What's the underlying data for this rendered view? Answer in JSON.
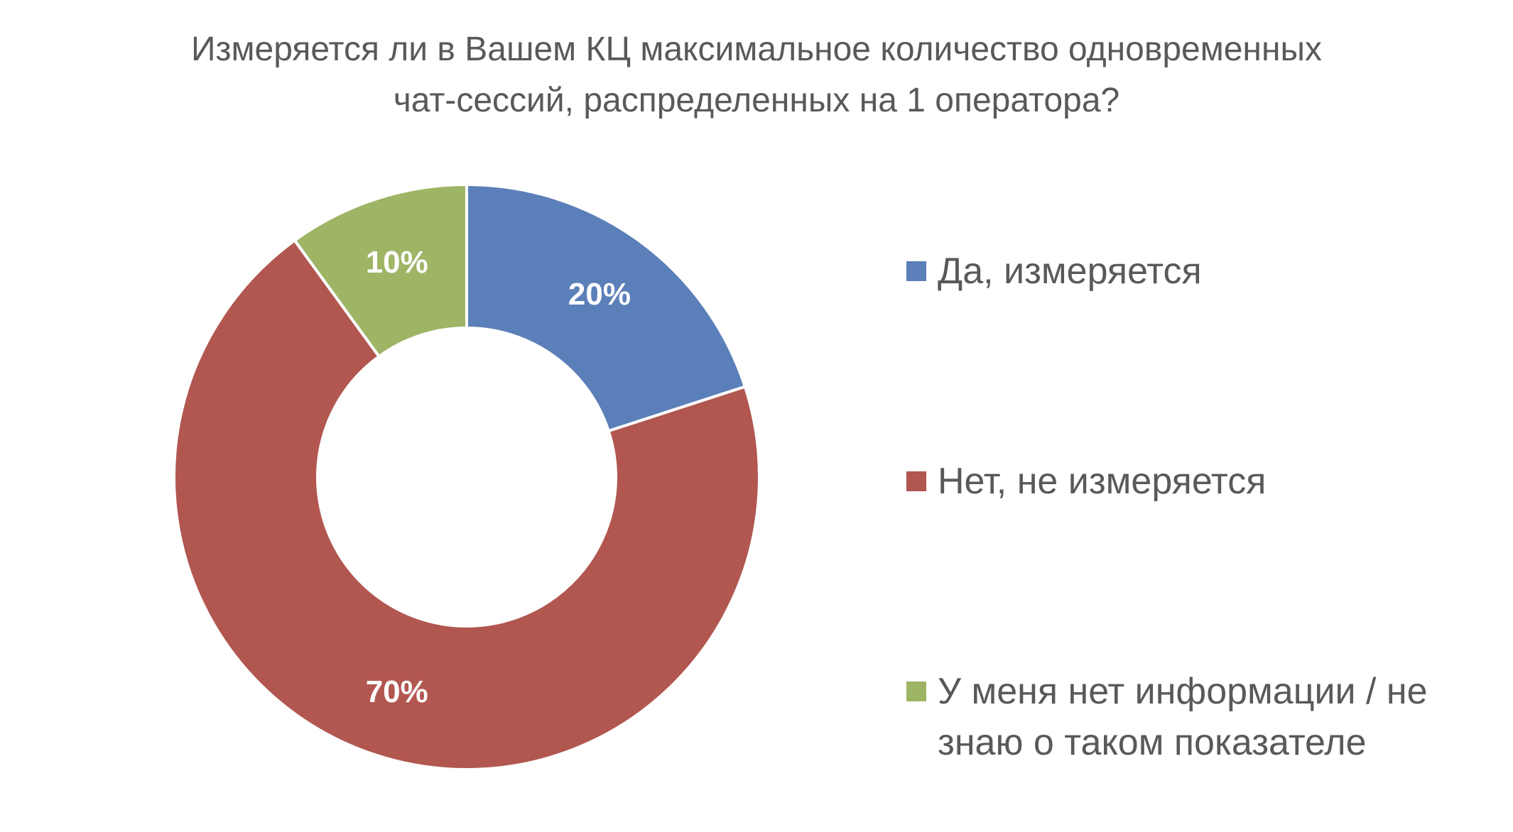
{
  "chart_data": {
    "type": "pie",
    "variant": "donut",
    "title_lines": [
      "Измеряется ли в Вашем КЦ максимальное количество одновременных",
      "чат-сессий, распределенных на 1 оператора?"
    ],
    "legend_placement": "right",
    "slices": [
      {
        "label": "Да, измеряется",
        "value": 20,
        "display": "20%",
        "color": "#5B7FB8"
      },
      {
        "label": "Нет, не измеряется",
        "value": 70,
        "display": "70%",
        "color": "#B15750"
      },
      {
        "label": "У меня нет информации / не знаю о таком показателе",
        "value": 10,
        "display": "10%",
        "color": "#9EB566"
      }
    ]
  }
}
